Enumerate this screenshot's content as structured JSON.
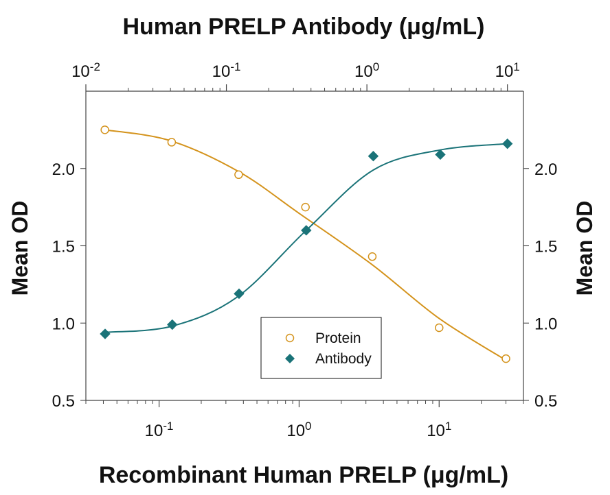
{
  "chart_data": {
    "type": "scatter",
    "title": "Human PRELP Antibody (μg/mL)",
    "xlabel": "Recombinant Human PRELP (μg/mL)",
    "ylabel_left": "Mean OD",
    "ylabel_right": "Mean OD",
    "x_scale": "log",
    "xlim_bottom": [
      0.03,
      40
    ],
    "xlim_top": [
      0.01,
      13
    ],
    "ylim": [
      0.5,
      2.5
    ],
    "bottom_x_ticks": [
      {
        "value": 0.1,
        "base": "10",
        "exp": "-1"
      },
      {
        "value": 1,
        "base": "10",
        "exp": "0"
      },
      {
        "value": 10,
        "base": "10",
        "exp": "1"
      }
    ],
    "top_x_ticks": [
      {
        "value": 0.01,
        "base": "10",
        "exp": "-2"
      },
      {
        "value": 0.1,
        "base": "10",
        "exp": "-1"
      },
      {
        "value": 1,
        "base": "10",
        "exp": "0"
      },
      {
        "value": 10,
        "base": "10",
        "exp": "1"
      }
    ],
    "y_ticks": [
      {
        "value": 0.5,
        "label": "0.5"
      },
      {
        "value": 1.0,
        "label": "1.0"
      },
      {
        "value": 1.5,
        "label": "1.5"
      },
      {
        "value": 2.0,
        "label": "2.0"
      }
    ],
    "legend_position": "bottom-center",
    "series": [
      {
        "name": "Protein",
        "axis": "bottom",
        "marker": "circle-open",
        "color": "#d4931c",
        "points": [
          {
            "x": 0.041,
            "y": 2.25
          },
          {
            "x": 0.123,
            "y": 2.17
          },
          {
            "x": 0.37,
            "y": 1.96
          },
          {
            "x": 1.11,
            "y": 1.75
          },
          {
            "x": 3.33,
            "y": 1.43
          },
          {
            "x": 10.0,
            "y": 0.97
          },
          {
            "x": 30.0,
            "y": 0.77
          }
        ],
        "curve": [
          {
            "x": 0.041,
            "y": 2.25
          },
          {
            "x": 0.12,
            "y": 2.18
          },
          {
            "x": 0.37,
            "y": 1.98
          },
          {
            "x": 1.0,
            "y": 1.71
          },
          {
            "x": 3.3,
            "y": 1.38
          },
          {
            "x": 10.0,
            "y": 1.03
          },
          {
            "x": 30.0,
            "y": 0.76
          }
        ]
      },
      {
        "name": "Antibody",
        "axis": "top",
        "marker": "diamond",
        "color": "#1a7378",
        "points": [
          {
            "x": 0.0137,
            "y": 0.93
          },
          {
            "x": 0.0412,
            "y": 0.99
          },
          {
            "x": 0.123,
            "y": 1.19
          },
          {
            "x": 0.37,
            "y": 1.6
          },
          {
            "x": 1.11,
            "y": 2.08
          },
          {
            "x": 3.33,
            "y": 2.09
          },
          {
            "x": 10.0,
            "y": 2.16
          }
        ],
        "curve": [
          {
            "x": 0.0137,
            "y": 0.94
          },
          {
            "x": 0.041,
            "y": 0.98
          },
          {
            "x": 0.12,
            "y": 1.17
          },
          {
            "x": 0.37,
            "y": 1.6
          },
          {
            "x": 1.11,
            "y": 1.99
          },
          {
            "x": 3.33,
            "y": 2.12
          },
          {
            "x": 10.0,
            "y": 2.16
          }
        ]
      }
    ],
    "colors": {
      "axis": "#444444",
      "text": "#111111",
      "protein": "#d4931c",
      "antibody": "#1a7378"
    }
  }
}
